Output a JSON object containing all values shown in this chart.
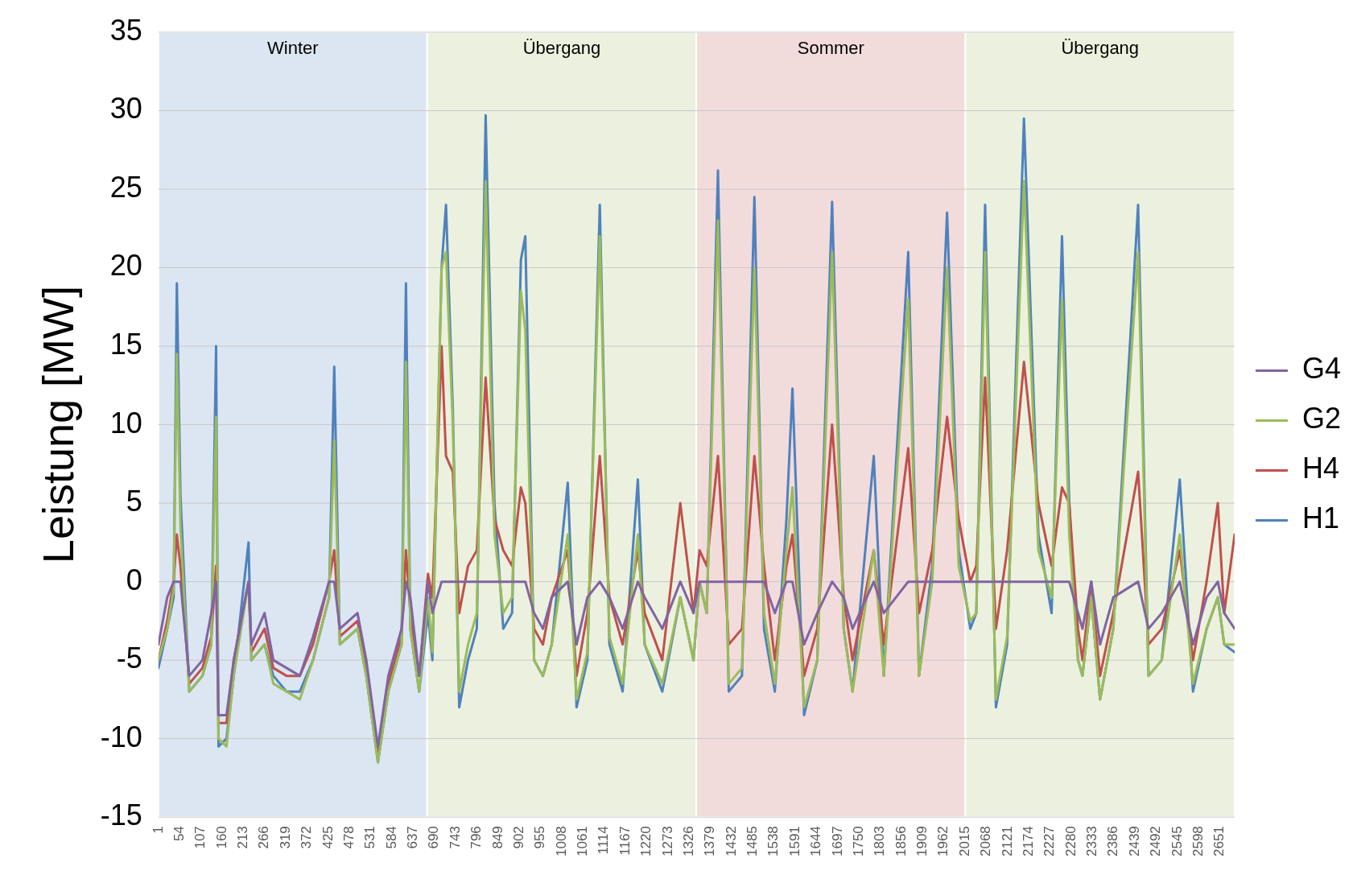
{
  "chart_data": {
    "type": "line",
    "ylabel": "Leistung [MW]",
    "x": [
      1,
      23,
      39,
      47,
      56,
      78,
      111,
      133,
      145,
      151,
      171,
      189,
      226,
      233,
      266,
      288,
      321,
      354,
      387,
      427,
      440,
      454,
      498,
      520,
      549,
      575,
      608,
      619,
      630,
      652,
      674,
      685,
      708,
      719,
      736,
      752,
      774,
      796,
      818,
      840,
      862,
      884,
      906,
      917,
      939,
      961,
      983,
      1023,
      1045,
      1072,
      1103,
      1127,
      1160,
      1198,
      1215,
      1259,
      1304,
      1337,
      1352,
      1370,
      1398,
      1425,
      1458,
      1489,
      1513,
      1540,
      1569,
      1584,
      1613,
      1646,
      1683,
      1712,
      1734,
      1787,
      1812,
      1873,
      1900,
      1933,
      1970,
      1999,
      2028,
      2043,
      2065,
      2092,
      2120,
      2162,
      2198,
      2231,
      2257,
      2275,
      2297,
      2308,
      2330,
      2352,
      2385,
      2447,
      2473,
      2506,
      2551,
      2584,
      2618,
      2646,
      2662,
      2688
    ],
    "series": [
      {
        "name": "H1",
        "color": "#4f81bd",
        "values": [
          -5.5,
          -3,
          -1,
          19,
          5.5,
          -7,
          -6,
          -4,
          15,
          -10.5,
          -10,
          -6,
          2.5,
          -5,
          -4,
          -6,
          -7,
          -7,
          -5,
          -1,
          13.7,
          -4,
          -3,
          -6,
          -11.5,
          -7,
          -4,
          19,
          -3,
          -7,
          -2,
          -5,
          20,
          24,
          11,
          -8,
          -5,
          -3,
          29.7,
          5,
          -3,
          -2,
          20.5,
          22,
          -5,
          -6,
          -4,
          6.3,
          -8,
          -5,
          24,
          -4,
          -7,
          6.5,
          -4,
          -7,
          -1,
          -5,
          0,
          -2,
          26.2,
          -7,
          -6,
          24.5,
          -3,
          -7,
          4,
          12.3,
          -8.5,
          -5,
          24.2,
          -3,
          -7,
          8,
          -6,
          21,
          -6,
          1,
          23.5,
          2,
          -3,
          -2,
          24,
          -8,
          -4,
          29.5,
          3,
          -2,
          22,
          5,
          -5,
          -6,
          -1,
          -7.5,
          -3,
          24,
          -6,
          -5,
          6.5,
          -7,
          -3,
          -1,
          -4,
          -4.5
        ]
      },
      {
        "name": "H4",
        "color": "#c0504d",
        "values": [
          -5,
          -2.5,
          0,
          3,
          1,
          -6.5,
          -5.5,
          -3.5,
          1,
          -9,
          -9,
          -5,
          0,
          -4.5,
          -3,
          -5.5,
          -6,
          -6,
          -4,
          0,
          2,
          -3.5,
          -2.5,
          -5.5,
          -11,
          -6.5,
          -3.5,
          2,
          -2,
          -6,
          0.5,
          -1,
          15,
          8,
          7,
          -2,
          1,
          2,
          13,
          4,
          2,
          1,
          6,
          5,
          -3,
          -4,
          -1,
          2,
          -6,
          -2,
          8,
          -1,
          -4,
          2,
          -2,
          -5,
          5,
          -2,
          2,
          1,
          8,
          -4,
          -3,
          8,
          1,
          -5,
          1,
          3,
          -6,
          -3,
          10,
          -1,
          -5,
          2,
          -4,
          8.5,
          -2,
          2,
          10.5,
          4,
          0,
          1,
          13,
          -3,
          2,
          14,
          5,
          1,
          6,
          5,
          -3,
          -5,
          0,
          -6,
          -2,
          7,
          -4,
          -3,
          2,
          -5,
          0,
          5,
          -2,
          3
        ]
      },
      {
        "name": "G2",
        "color": "#9bbb59",
        "values": [
          -5,
          -3,
          -0.5,
          14.5,
          3.5,
          -7,
          -6,
          -4,
          10.5,
          -10,
          -10.5,
          -6,
          0,
          -5,
          -4,
          -6.5,
          -7,
          -7.5,
          -5,
          -1,
          9,
          -4,
          -3,
          -6,
          -11.5,
          -7,
          -4,
          14,
          -3,
          -7,
          -1,
          -4.5,
          20,
          21,
          10,
          -7,
          -4,
          -2,
          25.5,
          3,
          -2,
          -1,
          18.5,
          16,
          -5,
          -6,
          -4,
          3,
          -7.5,
          -4.5,
          22,
          -3.5,
          -6.5,
          3,
          -4,
          -6.5,
          -1,
          -5,
          0,
          -2,
          23,
          -6.5,
          -5.5,
          20,
          -2,
          -6.5,
          2,
          6,
          -8,
          -5,
          21,
          -3,
          -7,
          2,
          -6,
          18,
          -6,
          0,
          20,
          1,
          -2.5,
          -2,
          21,
          -7.5,
          -3.5,
          25.5,
          2,
          -1,
          18,
          3,
          -5,
          -6,
          -1,
          -7.5,
          -3,
          21,
          -6,
          -5,
          3,
          -6.5,
          -3,
          -1,
          -4,
          -4
        ]
      },
      {
        "name": "G4",
        "color": "#8064a2",
        "values": [
          -4,
          -1,
          0,
          0,
          0,
          -6,
          -5,
          -2,
          0,
          -8.5,
          -8.5,
          -5,
          0,
          -4,
          -2,
          -5,
          -5.5,
          -6,
          -3.5,
          0,
          0,
          -3,
          -2,
          -5,
          -10.5,
          -6,
          -3,
          0,
          -1,
          -6,
          0,
          -2,
          0,
          0,
          0,
          0,
          0,
          0,
          0,
          0,
          0,
          0,
          0,
          0,
          -2,
          -3,
          -1,
          0,
          -4,
          -1,
          0,
          -1,
          -3,
          0,
          -1,
          -3,
          0,
          -2,
          0,
          0,
          0,
          0,
          0,
          0,
          0,
          -2,
          0,
          0,
          -4,
          -2,
          0,
          -1,
          -3,
          0,
          -2,
          0,
          0,
          0,
          0,
          0,
          0,
          0,
          0,
          0,
          0,
          0,
          0,
          0,
          0,
          0,
          -2,
          -3,
          0,
          -4,
          -1,
          0,
          -3,
          -2,
          0,
          -4,
          -1,
          0,
          -2,
          -3
        ]
      }
    ],
    "xlim": [
      1,
      2688
    ],
    "xticks": [
      1,
      54,
      107,
      160,
      213,
      266,
      319,
      372,
      425,
      478,
      531,
      584,
      637,
      690,
      743,
      796,
      849,
      902,
      955,
      1008,
      1061,
      1114,
      1167,
      1220,
      1273,
      1326,
      1379,
      1432,
      1485,
      1538,
      1591,
      1644,
      1697,
      1750,
      1803,
      1856,
      1909,
      1962,
      2015,
      2068,
      2121,
      2174,
      2227,
      2280,
      2333,
      2386,
      2439,
      2492,
      2545,
      2598,
      2651
    ],
    "ylim": [
      -15,
      35
    ],
    "yticks": [
      -15,
      -10,
      -5,
      0,
      5,
      10,
      15,
      20,
      25,
      30,
      35
    ],
    "bands": [
      {
        "axis": "x",
        "from": 1,
        "to": 672,
        "label": "Winter",
        "color": "#dce6f2"
      },
      {
        "axis": "x",
        "from": 672,
        "to": 1344,
        "label": "Übergang",
        "color": "#ebf1de"
      },
      {
        "axis": "x",
        "from": 1344,
        "to": 2016,
        "label": "Sommer",
        "color": "#f2dcdb"
      },
      {
        "axis": "x",
        "from": 2016,
        "to": 2688,
        "label": "Übergang",
        "color": "#ebf1de"
      }
    ],
    "grid": "y",
    "legend": "right",
    "marker": "none",
    "line_style": "solid"
  }
}
